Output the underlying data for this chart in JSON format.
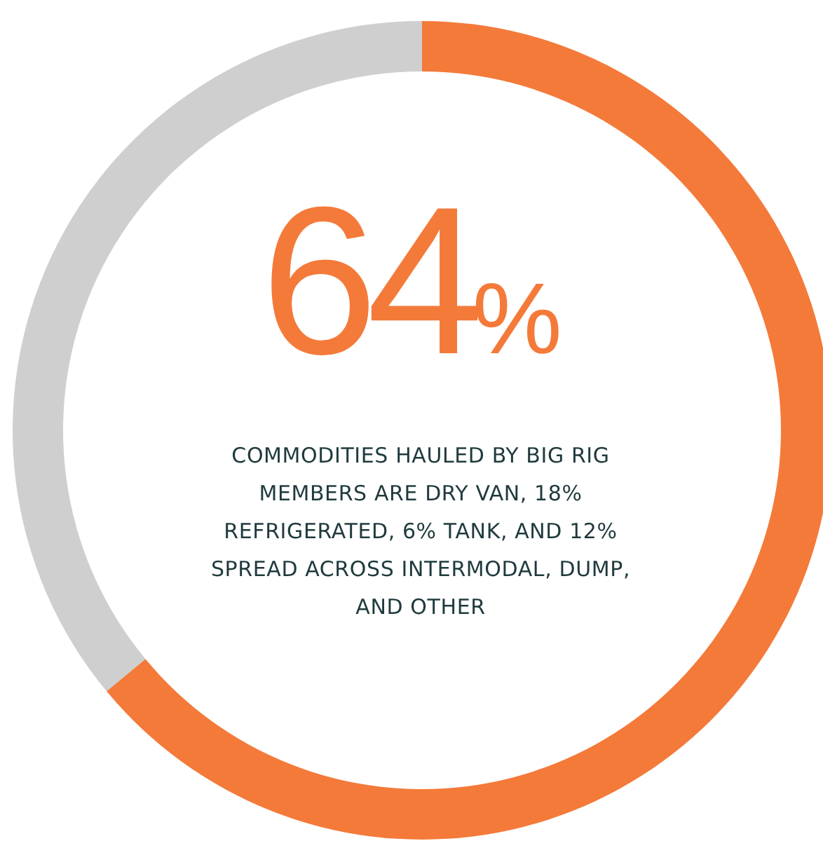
{
  "chart_data": {
    "type": "donut",
    "title": "64%",
    "categories": [
      null,
      null
    ],
    "values": [
      64,
      36
    ],
    "colors": [
      "#f47a3a",
      "#cfcfcf"
    ],
    "annotations": [
      "COMMODITIES HAULED BY BIG RIG MEMBERS ARE DRY VAN, 18% REFRIGERATED, 6% TANK, AND 12% SPREAD ACROSS INTERMODAL, DUMP, AND OTHER"
    ]
  }
}
